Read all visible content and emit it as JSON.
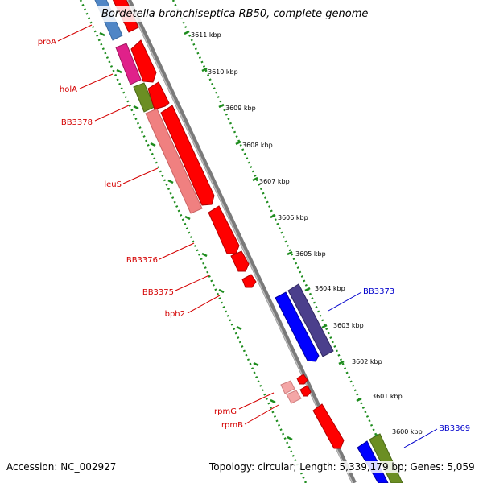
{
  "title": "Bordetella bronchiseptica RB50, complete genome",
  "accession": "Accession: NC_002927",
  "summary": "Topology: circular; Length: 5,339,179 bp; Genes: 5,059",
  "colors": {
    "backbone": "#7a7a7a",
    "scale_dots": "#1e8c1e",
    "forward_label": "#d40000",
    "reverse_label": "#0000cc"
  },
  "scale_ticks": [
    "3611 kbp",
    "3610 kbp",
    "3609 kbp",
    "3608 kbp",
    "3607 kbp",
    "3606 kbp",
    "3605 kbp",
    "3604 kbp",
    "3603 kbp",
    "3602 kbp",
    "3601 kbp",
    "3600 kbp"
  ],
  "gene_labels_left": [
    "proA",
    "holA",
    "BB3378",
    "leuS",
    "BB3376",
    "BB3375",
    "bph2",
    "rpmG",
    "rpmB"
  ],
  "gene_labels_right": [
    "BB3373",
    "BB3369"
  ]
}
